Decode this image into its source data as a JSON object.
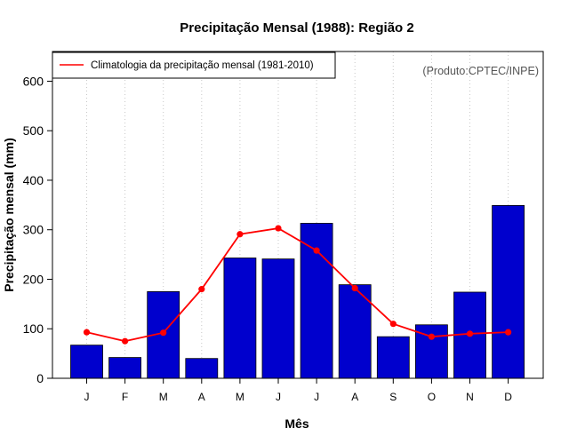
{
  "chart_data": {
    "type": "bar",
    "title": "Precipitação Mensal (1988): Região 2",
    "xlabel": "Mês",
    "ylabel": "Precipitação mensal (mm)",
    "ylim": [
      0,
      660
    ],
    "yticks": [
      0,
      100,
      200,
      300,
      400,
      500,
      600
    ],
    "categories": [
      "J",
      "F",
      "M",
      "A",
      "M",
      "J",
      "J",
      "A",
      "S",
      "O",
      "N",
      "D"
    ],
    "series": [
      {
        "name": "Precipitação mensal (1988)",
        "type": "bar",
        "color": "#0000cd",
        "values": [
          67,
          42,
          175,
          40,
          243,
          241,
          313,
          189,
          84,
          108,
          174,
          349
        ]
      },
      {
        "name": "Climatologia da precipitação mensal (1981-2010)",
        "type": "line",
        "color": "#ff0000",
        "values": [
          93,
          75,
          92,
          180,
          291,
          303,
          258,
          182,
          110,
          84,
          90,
          93
        ]
      }
    ],
    "legend": {
      "label": "Climatologia da precipitação mensal (1981-2010)",
      "placement": "top-left"
    },
    "annotation": "(Produto:CPTEC/INPE)",
    "grid": "vertical-dotted"
  }
}
